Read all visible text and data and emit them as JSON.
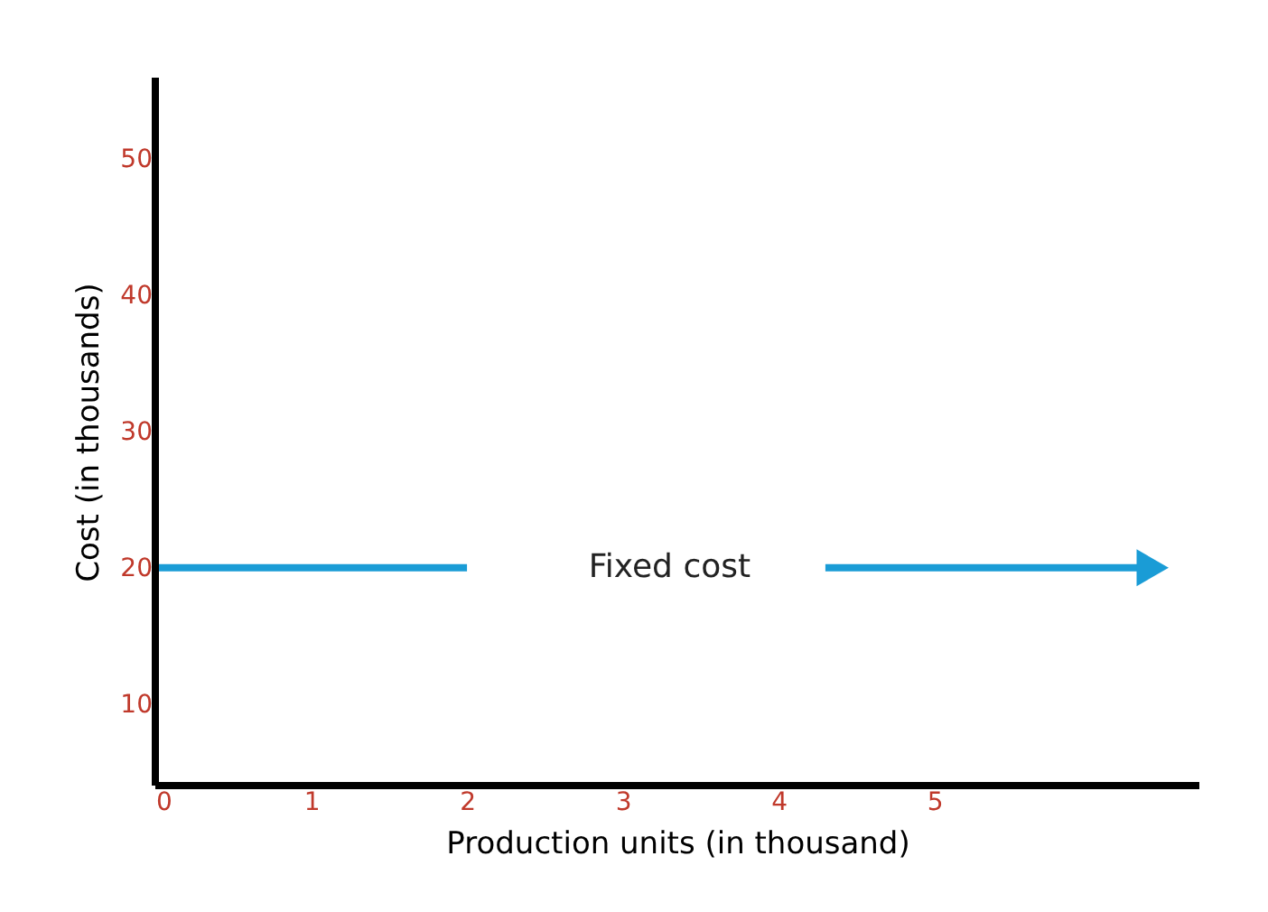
{
  "chart_data": {
    "type": "line",
    "xlabel": "Production units (in thousand)",
    "ylabel": "Cost (in thousands)",
    "x": [
      0,
      2,
      3.3,
      4.3,
      6.4
    ],
    "series": [
      {
        "color": "#1a9cd6",
        "values": [
          20,
          20,
          null,
          20,
          20
        ]
      }
    ],
    "annotations": [
      "Fixed cost"
    ],
    "xlim": [
      0,
      6.7
    ],
    "ylim": [
      4,
      56
    ],
    "xticks": [
      0,
      1,
      2,
      3,
      4,
      5
    ],
    "yticks": [
      10,
      20,
      30,
      40,
      50
    ],
    "grid": false,
    "line_style": "solid"
  }
}
